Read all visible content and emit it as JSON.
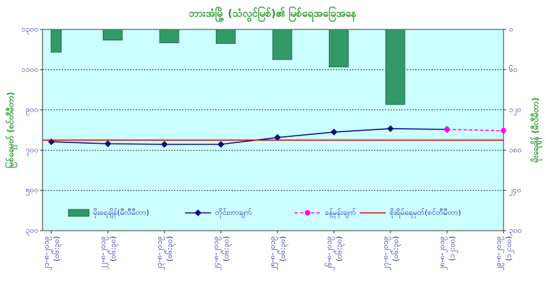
{
  "chart_data": {
    "type": "bar-line",
    "title": "ဘားအံမြို့ (သံလွင်မြစ်)၏ မြစ်ရေအခြေအနေ",
    "y_label": "မြစ်ရေမှတ် (စင်တီမီတာ)",
    "y2_label": "မိုးရေချိန် (မီလီမီတာ)",
    "categories": [
      "၂၁-၈-၂၀၁၉",
      "၂၂-၈-၂၀၁၉",
      "၂၃-၈-၂၀၁၉",
      "၂၄-၈-၂၀၁၉",
      "၂၅-၈-၂၀၁၉",
      "၂၆-၈-၂၀၁၉",
      "၂၇-၈-၂၀၁၉",
      "၂၈-၈-၂၀၁၉",
      "၂၉-၈-၂၀၁၉"
    ],
    "category_times": [
      "(၀၆:၃၀)",
      "(၀၆:၃၀)",
      "(၀၆:၃၀)",
      "(၀၆:၃၀)",
      "(၀၆:၃၀)",
      "(၀၆:၃၀)",
      "(၀၆:၃၀)",
      "(၁၂:၀၀)",
      "(၁၂:၀၀)"
    ],
    "ylim": [
      300,
      1300
    ],
    "yticks": [
      {
        "value": 300,
        "label": "၃၀၀"
      },
      {
        "value": 500,
        "label": "၅၀၀"
      },
      {
        "value": 700,
        "label": "၇၀၀"
      },
      {
        "value": 900,
        "label": "၉၀၀"
      },
      {
        "value": 1100,
        "label": "၁၁၀၀"
      },
      {
        "value": 1300,
        "label": "၁၃၀၀"
      }
    ],
    "y2lim": [
      0,
      300
    ],
    "y2_inverted": true,
    "y2ticks": [
      {
        "value": 0,
        "label": "၀"
      },
      {
        "value": 60,
        "label": "၆၀"
      },
      {
        "value": 120,
        "label": "၁၂၀"
      },
      {
        "value": 180,
        "label": "၁၈၀"
      },
      {
        "value": 240,
        "label": "၂၄၀"
      },
      {
        "value": 300,
        "label": "၃၀၀"
      }
    ],
    "grid": true,
    "series": [
      {
        "name": "မိုးရေချိန်(မီလီမီတာ)",
        "kind": "bar",
        "axis": "y2",
        "color": "#339966",
        "values": [
          34,
          16,
          20,
          21,
          45,
          56,
          112,
          null,
          null
        ]
      },
      {
        "name": "တိုင်းတာချက်",
        "kind": "line",
        "color": "#0a0a80",
        "dashed": false,
        "values": [
          742,
          732,
          729,
          729,
          763,
          790,
          807,
          803,
          null
        ]
      },
      {
        "name": "ခန့်မှန်းချက်",
        "kind": "line",
        "color": "#ff00ff",
        "dashed": true,
        "values": [
          null,
          null,
          null,
          null,
          null,
          null,
          null,
          803,
          797
        ]
      }
    ],
    "reference_line": {
      "name": "စိုးရိမ်ရေမှတ်(စင်တီမီတာ)",
      "color": "#dd0000",
      "value": 750
    }
  }
}
